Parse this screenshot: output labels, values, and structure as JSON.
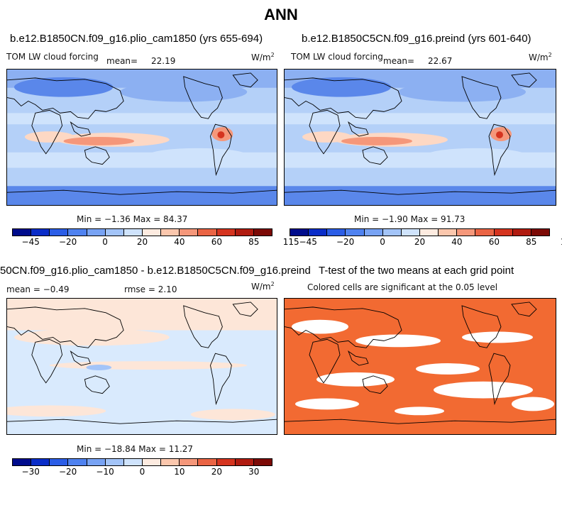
{
  "title": "ANN",
  "panels": {
    "p1": {
      "case": "b.e12.B1850CN.f09_g16.plio_cam1850 (yrs 655-694)",
      "variable": "TOM LW cloud forcing",
      "mean_label": "mean=",
      "mean": "22.19",
      "units": "W/m",
      "units_exp": "2",
      "stats": "Min =  −1.36 Max =  84.37"
    },
    "p2": {
      "case": "b.e12.B1850C5CN.f09_g16.preind (yrs 601-640)",
      "variable": "TOM LW cloud forcing",
      "mean_label": "mean=",
      "mean": "22.67",
      "units": "W/m",
      "units_exp": "2",
      "stats": "Min =  −1.90 Max =  91.73"
    },
    "p3": {
      "case": "50CN.f09_g16.plio_cam1850 - b.e12.B1850C5CN.f09_g16.preind",
      "mean": "mean =  −0.49",
      "rmse": "rmse =   2.10",
      "units": "W/m",
      "units_exp": "2",
      "stats": "Min = −18.84 Max =  11.27"
    },
    "p4": {
      "title": "T-test of the two means at each grid point",
      "subtitle": "Colored cells are significant at the 0.05 level"
    }
  },
  "colorbars": {
    "main": {
      "colors": [
        "#000c8c",
        "#0a2dc8",
        "#2b5de6",
        "#4f82f0",
        "#78a3f4",
        "#a3c4f8",
        "#cfe3fc",
        "#fdebe0",
        "#fbc7ad",
        "#f5977a",
        "#ea6444",
        "#d5341f",
        "#b01b10",
        "#7c0a06"
      ],
      "ticks": [
        "−45",
        "−20",
        "0",
        "20",
        "40",
        "60",
        "85",
        "115"
      ]
    },
    "diff": {
      "colors": [
        "#000c8c",
        "#0a2dc8",
        "#2b5de6",
        "#4f82f0",
        "#78a3f4",
        "#a3c4f8",
        "#cfe3fc",
        "#fdebe0",
        "#fbc7ad",
        "#f5977a",
        "#ea6444",
        "#d5341f",
        "#b01b10",
        "#7c0a06"
      ],
      "ticks": [
        "−30",
        "−20",
        "−10",
        "0",
        "10",
        "20",
        "30"
      ]
    }
  },
  "map_colors": {
    "ocean_base": "#b4d0f8",
    "light_blue": "#cfe3fc",
    "mid_blue": "#8cb0f2",
    "dark_blue": "#5a87ea",
    "peach": "#fdd8c4",
    "salmon": "#f5977a",
    "red": "#d5341f",
    "diff_base": "#d9eafd",
    "diff_peach": "#fde6d8",
    "ttest": "#f26a32"
  }
}
